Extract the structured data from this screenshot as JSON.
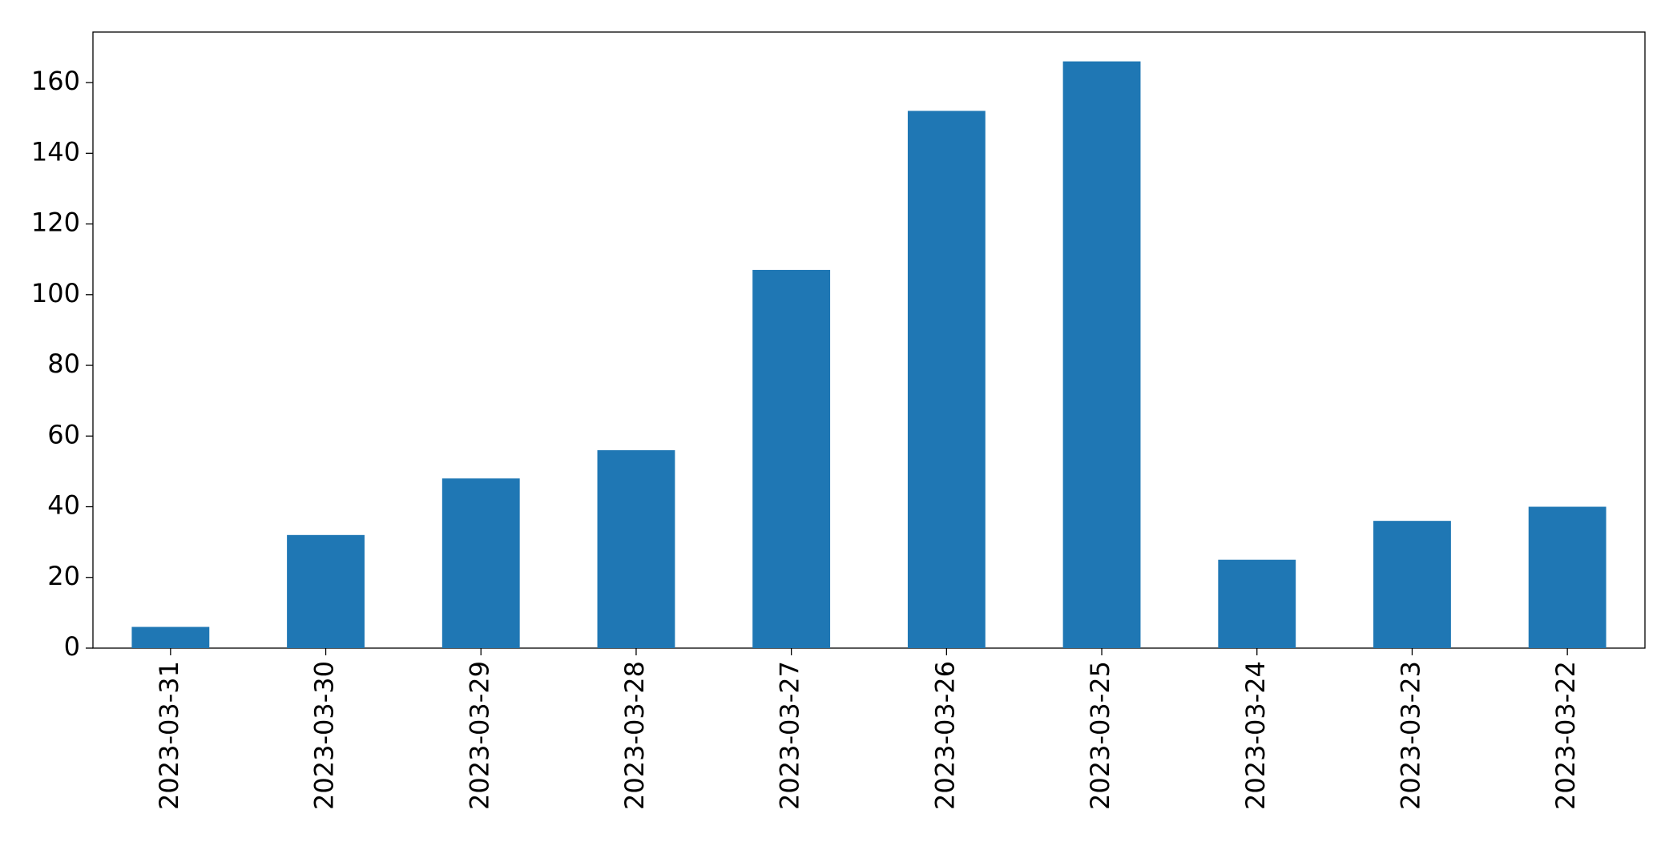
{
  "chart_data": {
    "type": "bar",
    "categories": [
      "2023-03-31",
      "2023-03-30",
      "2023-03-29",
      "2023-03-28",
      "2023-03-27",
      "2023-03-26",
      "2023-03-25",
      "2023-03-24",
      "2023-03-23",
      "2023-03-22"
    ],
    "values": [
      6,
      32,
      48,
      56,
      107,
      152,
      166,
      25,
      36,
      40
    ],
    "color": "#1f77b4",
    "ylim": [
      0,
      174.3
    ],
    "yticks": [
      0,
      20,
      40,
      60,
      80,
      100,
      120,
      140,
      160
    ],
    "grid": false
  }
}
